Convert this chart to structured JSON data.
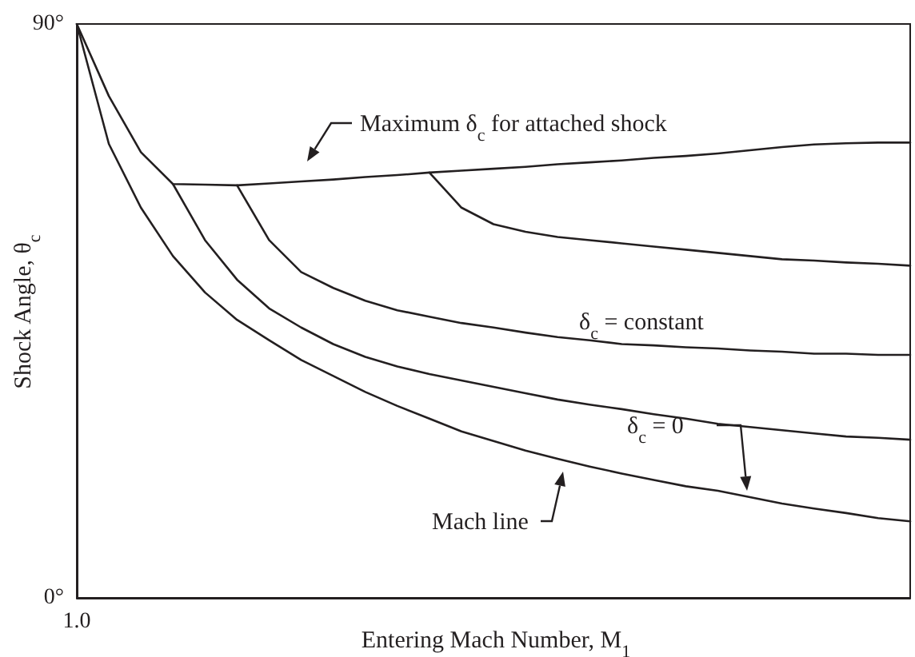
{
  "chart_data": {
    "type": "line",
    "xlabel": "Entering Mach Number, M$_{1}$",
    "ylabel": "Shock Angle, θ$_{c}$",
    "categories": [
      "1.0",
      null,
      null,
      null,
      null,
      null,
      null,
      null,
      null,
      null,
      null,
      null,
      null,
      null,
      null,
      null,
      null,
      null,
      null,
      null,
      null,
      null,
      null,
      null,
      null,
      null,
      null
    ],
    "series": [
      {
        "color": "#231f20",
        "values": [
          90,
          78.7,
          69.9,
          64.9,
          64.8,
          64.7,
          65.0,
          65.3,
          65.6,
          66.0,
          66.3,
          66.7,
          67.0,
          67.3,
          67.6,
          68.0,
          68.3,
          68.6,
          69.0,
          69.3,
          69.7,
          70.2,
          70.7,
          71.1,
          71.3,
          71.4,
          71.4
        ]
      },
      {
        "color": "#231f20",
        "values": [
          null,
          null,
          null,
          64.9,
          56.1,
          49.9,
          45.4,
          42.4,
          39.8,
          37.8,
          36.3,
          35.1,
          34.1,
          33.1,
          32.1,
          31.1,
          30.3,
          29.6,
          28.8,
          28.1,
          27.3,
          26.8,
          26.3,
          25.8,
          25.3,
          25.1,
          24.8
        ]
      },
      {
        "color": "#231f20",
        "values": [
          null,
          null,
          null,
          null,
          null,
          64.7,
          56.1,
          51.1,
          48.6,
          46.6,
          45.1,
          44.1,
          43.1,
          42.4,
          41.6,
          40.9,
          40.4,
          39.8,
          39.6,
          39.3,
          39.1,
          38.8,
          38.6,
          38.3,
          38.3,
          38.1,
          38.1
        ]
      },
      {
        "color": "#231f20",
        "values": [
          null,
          null,
          null,
          null,
          null,
          null,
          null,
          null,
          null,
          null,
          null,
          66.7,
          61.2,
          58.6,
          57.4,
          56.6,
          56.1,
          55.6,
          55.1,
          54.6,
          54.1,
          53.6,
          53.1,
          52.9,
          52.6,
          52.4,
          52.1
        ]
      },
      {
        "color": "#231f20",
        "values": [
          90,
          71.2,
          61.2,
          53.6,
          47.9,
          43.6,
          40.4,
          37.3,
          34.8,
          32.3,
          30.1,
          28.1,
          26.1,
          24.6,
          23.1,
          21.8,
          20.6,
          19.5,
          18.5,
          17.5,
          16.8,
          15.8,
          14.8,
          14.0,
          13.3,
          12.5,
          12.0
        ]
      }
    ],
    "ylim": [
      0,
      90
    ],
    "yticks": [
      {
        "value": 0,
        "label": "0°"
      },
      {
        "value": 90,
        "label": "90°"
      }
    ],
    "annotations": [
      "Maximum δ$_{c}$ for attached shock",
      "δ$_{c}$ = constant",
      "δ$_{c}$ = 0",
      "Mach line"
    ]
  }
}
